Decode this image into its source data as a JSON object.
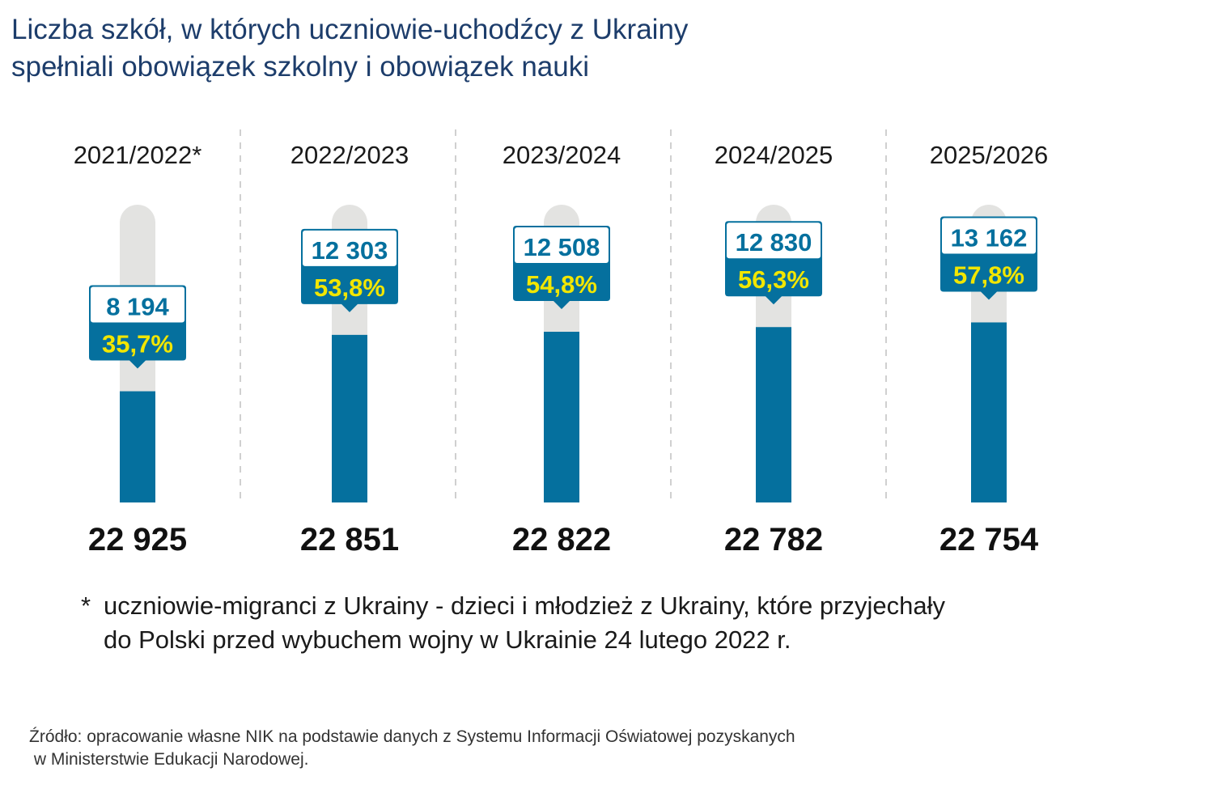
{
  "title": {
    "line1": "Liczba szkół, w których uczniowie-uchodźcy z Ukrainy",
    "line2": "spełniali obowiązek szkolny i obowiązek nauki"
  },
  "colors": {
    "bar": "#05709e",
    "track": "#e3e3e1",
    "percent": "#f2e600",
    "title": "#1d3d6b",
    "divider": "#d0d0d0"
  },
  "chart_data": {
    "type": "bar",
    "categories": [
      "2021/2022*",
      "2022/2023",
      "2023/2024",
      "2024/2025",
      "2025/2026"
    ],
    "totals": [
      22925,
      22851,
      22822,
      22782,
      22754
    ],
    "totals_labels": [
      "22 925",
      "22 851",
      "22 822",
      "22 782",
      "22 754"
    ],
    "values": [
      8194,
      12303,
      12508,
      12830,
      13162
    ],
    "value_labels": [
      "8 194",
      "12 303",
      "12 508",
      "12 830",
      "13 162"
    ],
    "percent": [
      35.7,
      53.8,
      54.8,
      56.3,
      57.8
    ],
    "percent_labels": [
      "35,7%",
      "53,8%",
      "54,8%",
      "56,3%",
      "57,8%"
    ],
    "ylim": [
      0,
      100
    ]
  },
  "footnote": {
    "star": "*",
    "line1": "uczniowie-migranci z Ukrainy - dzieci i młodzież z Ukrainy, które przyjechały",
    "line2": "do Polski przed wybuchem wojny w Ukrainie 24 lutego 2022 r."
  },
  "source": {
    "line1": "Źródło: opracowanie własne NIK na podstawie danych z Systemu Informacji Oświatowej pozyskanych",
    "line2": " w Ministerstwie Edukacji Narodowej."
  }
}
